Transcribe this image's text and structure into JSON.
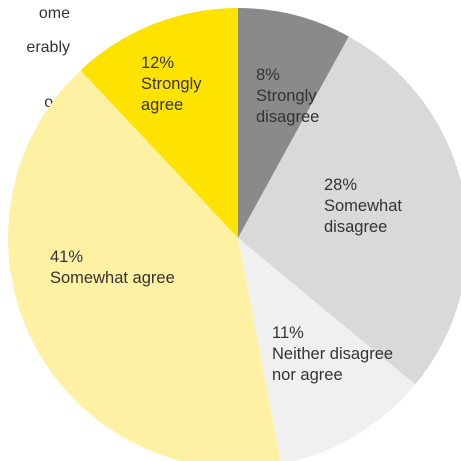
{
  "cropped_text": [
    "ome",
    "erably",
    "",
    "ods"
  ],
  "chart_data": {
    "type": "pie",
    "slices": [
      {
        "percent_label": "8%",
        "label_lines": [
          "Strongly",
          "disagree"
        ],
        "value": 8,
        "color": "#8a8a8a"
      },
      {
        "percent_label": "28%",
        "label_lines": [
          "Somewhat",
          "disagree"
        ],
        "value": 28,
        "color": "#d9d9d9"
      },
      {
        "percent_label": "11%",
        "label_lines": [
          "Neither disagree",
          "nor agree"
        ],
        "value": 11,
        "color": "#f0f0f0"
      },
      {
        "percent_label": "41%",
        "label_lines": [
          "Somewhat agree"
        ],
        "value": 41,
        "color": "#fff1a3"
      },
      {
        "percent_label": "12%",
        "label_lines": [
          "Strongly",
          "agree"
        ],
        "value": 12,
        "color": "#ffe300"
      }
    ],
    "start_angle_deg": 0,
    "direction": "clockwise",
    "legend": "none"
  }
}
